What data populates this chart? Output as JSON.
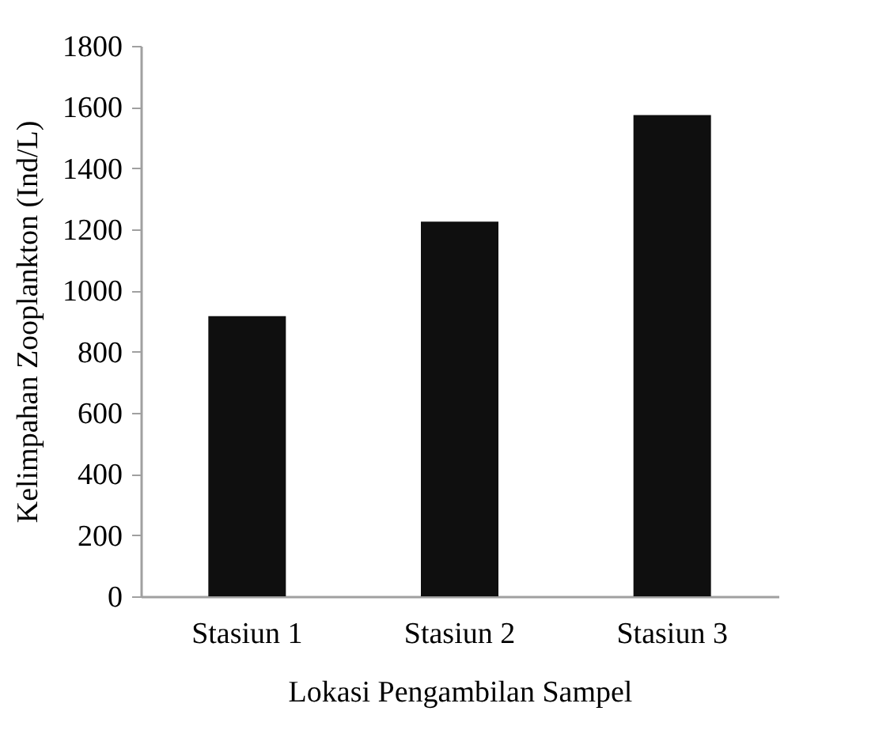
{
  "chart_data": {
    "type": "bar",
    "xlabel": "Lokasi Pengambilan Sampel",
    "ylabel": "Kelimpahan Zooplankton (Ind/L)",
    "categories": [
      "Stasiun 1",
      "Stasiun 2",
      "Stasiun 3"
    ],
    "values": [
      916,
      1225,
      1574
    ],
    "color": "#0f0f0f",
    "ylim": [
      0,
      1800
    ],
    "yticks": [
      0,
      200,
      400,
      600,
      800,
      1000,
      1200,
      1400,
      1600,
      1800
    ],
    "grid": false
  }
}
